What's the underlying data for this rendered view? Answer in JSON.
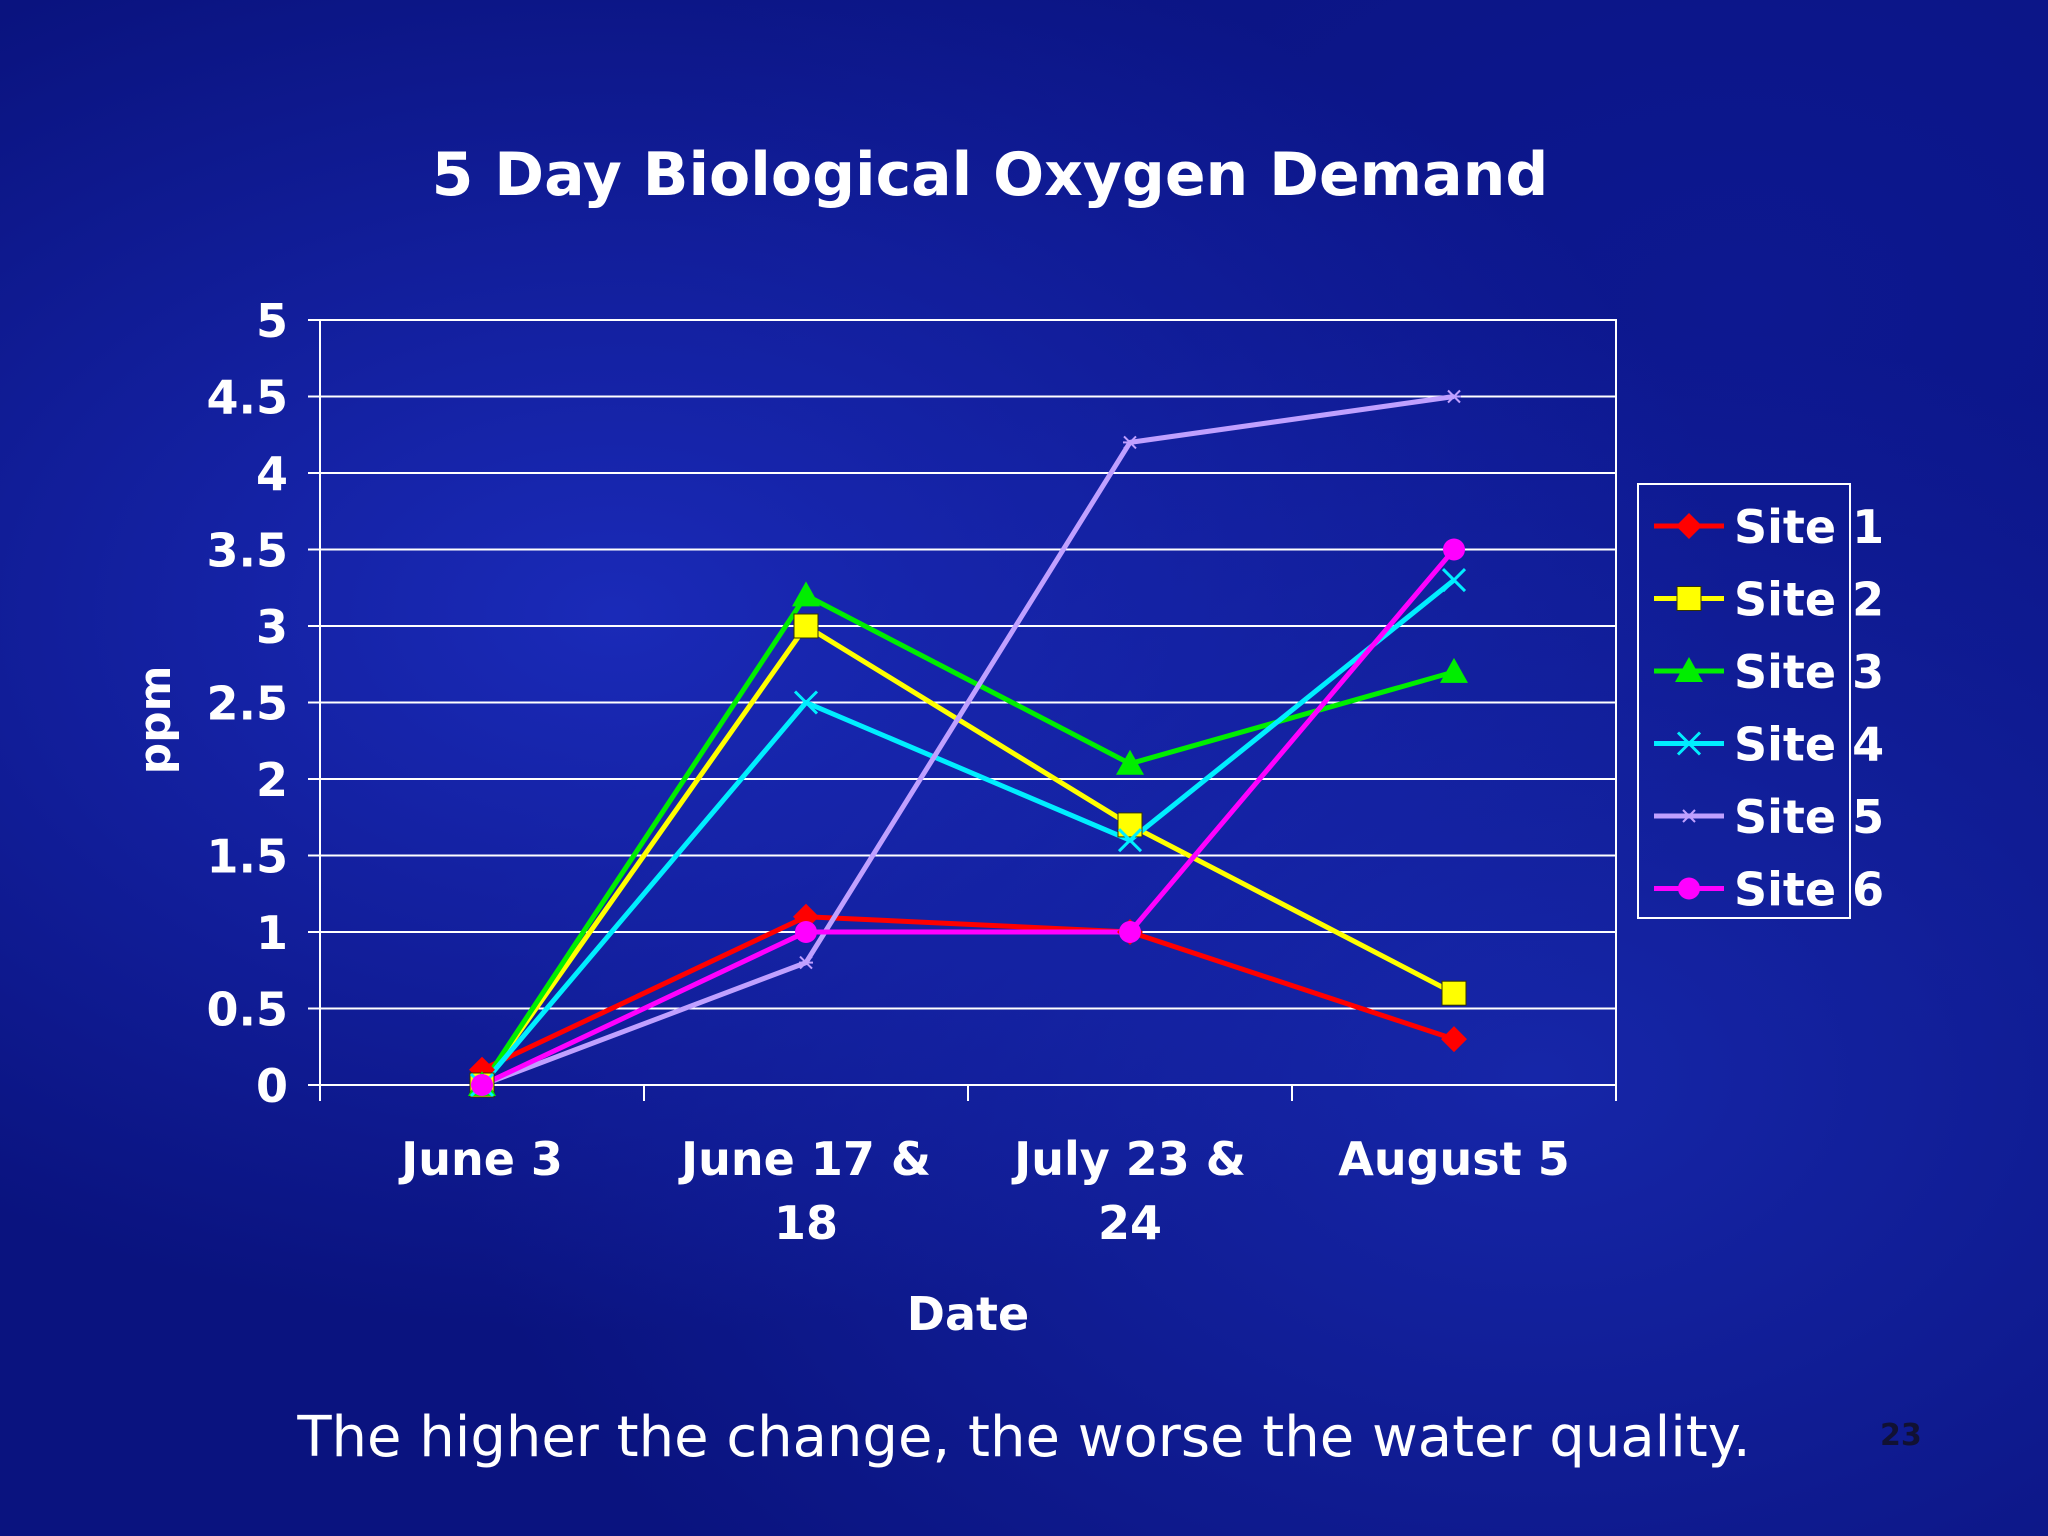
{
  "slide": {
    "caption": "The higher the change, the worse the water quality.",
    "page_number": "23"
  },
  "chart_data": {
    "type": "line",
    "title": "5 Day Biological Oxygen Demand",
    "xlabel": "Date",
    "ylabel": "ppm",
    "categories": [
      "June 3",
      "June 17 & 18",
      "July 23 & 24",
      "August 5"
    ],
    "ylim": [
      0,
      5
    ],
    "yticks": [
      "0",
      "0.5",
      "1",
      "1.5",
      "2",
      "2.5",
      "3",
      "3.5",
      "4",
      "4.5",
      "5"
    ],
    "grid": true,
    "legend_position": "right",
    "series": [
      {
        "name": "Site 1",
        "color": "#ff0000",
        "marker": "diamond",
        "values": [
          0.1,
          1.1,
          1.0,
          0.3
        ]
      },
      {
        "name": "Site 2",
        "color": "#ffff00",
        "marker": "square",
        "values": [
          0.0,
          3.0,
          1.7,
          0.6
        ]
      },
      {
        "name": "Site 3",
        "color": "#00ee00",
        "marker": "triangle",
        "values": [
          0.0,
          3.2,
          2.1,
          2.7
        ]
      },
      {
        "name": "Site 4",
        "color": "#00eeff",
        "marker": "x",
        "values": [
          0.0,
          2.5,
          1.6,
          3.3
        ]
      },
      {
        "name": "Site 5",
        "color": "#c0a0ff",
        "marker": "star",
        "values": [
          0.0,
          0.8,
          4.2,
          4.5
        ]
      },
      {
        "name": "Site 6",
        "color": "#ff00ff",
        "marker": "circle",
        "values": [
          0.0,
          1.0,
          1.0,
          3.5
        ]
      }
    ]
  }
}
